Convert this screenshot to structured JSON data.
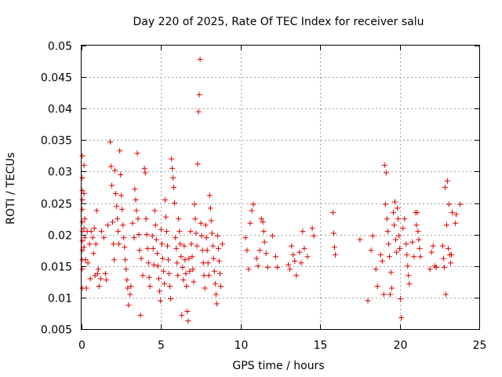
{
  "chart_data": {
    "type": "scatter",
    "title": "Day 220 of 2025, Rate Of TEC Index for receiver salu",
    "xlabel": "GPS time / hours",
    "ylabel": "ROTI / TECUs",
    "xlim": [
      0,
      25
    ],
    "ylim": [
      0.005,
      0.05
    ],
    "x_ticks": [
      0,
      5,
      10,
      15,
      20,
      25
    ],
    "y_ticks": [
      0.005,
      0.01,
      0.015,
      0.02,
      0.025,
      0.03,
      0.035,
      0.04,
      0.045,
      0.05
    ],
    "x_tick_labels": [
      "0",
      "5",
      "10",
      "15",
      "20",
      "25"
    ],
    "y_tick_labels": [
      "0.005",
      "0.01",
      "0.015",
      "0.02",
      "0.025",
      "0.03",
      "0.035",
      "0.04",
      "0.045",
      "0.05"
    ],
    "grid": true,
    "marker": "+",
    "marker_color": "#e00000",
    "series": [
      {
        "points": [
          [
            0.05,
            0.0325
          ],
          [
            0.05,
            0.029
          ],
          [
            0.05,
            0.027
          ],
          [
            0.05,
            0.0255
          ],
          [
            0.05,
            0.024
          ],
          [
            0.05,
            0.022
          ],
          [
            0.05,
            0.0205
          ],
          [
            0.05,
            0.019
          ],
          [
            0.05,
            0.0175
          ],
          [
            0.05,
            0.016
          ],
          [
            0.05,
            0.0145
          ],
          [
            0.05,
            0.0115
          ],
          [
            0.15,
            0.031
          ],
          [
            0.15,
            0.0265
          ],
          [
            0.15,
            0.021
          ],
          [
            0.15,
            0.018
          ],
          [
            0.2,
            0.0225
          ],
          [
            0.2,
            0.0195
          ],
          [
            0.25,
            0.016
          ],
          [
            0.3,
            0.0115
          ],
          [
            0.35,
            0.0205
          ],
          [
            0.4,
            0.0155
          ],
          [
            0.5,
            0.0185
          ],
          [
            0.55,
            0.013
          ],
          [
            0.6,
            0.0205
          ],
          [
            0.7,
            0.0195
          ],
          [
            0.75,
            0.017
          ],
          [
            0.8,
            0.021
          ],
          [
            0.85,
            0.0135
          ],
          [
            0.9,
            0.0185
          ],
          [
            0.95,
            0.0238
          ],
          [
            1.0,
            0.0138
          ],
          [
            1.05,
            0.0145
          ],
          [
            1.1,
            0.0118
          ],
          [
            1.2,
            0.013
          ],
          [
            1.25,
            0.0205
          ],
          [
            1.4,
            0.0195
          ],
          [
            1.5,
            0.0138
          ],
          [
            1.55,
            0.0128
          ],
          [
            1.65,
            0.0215
          ],
          [
            1.8,
            0.0347
          ],
          [
            1.85,
            0.0308
          ],
          [
            1.9,
            0.0278
          ],
          [
            1.95,
            0.022
          ],
          [
            2.0,
            0.0185
          ],
          [
            2.05,
            0.016
          ],
          [
            2.1,
            0.0302
          ],
          [
            2.15,
            0.0265
          ],
          [
            2.2,
            0.0245
          ],
          [
            2.25,
            0.0225
          ],
          [
            2.3,
            0.0205
          ],
          [
            2.35,
            0.0185
          ],
          [
            2.4,
            0.0333
          ],
          [
            2.45,
            0.0295
          ],
          [
            2.5,
            0.0262
          ],
          [
            2.55,
            0.024
          ],
          [
            2.6,
            0.0215
          ],
          [
            2.65,
            0.0195
          ],
          [
            2.7,
            0.018
          ],
          [
            2.75,
            0.016
          ],
          [
            2.8,
            0.0145
          ],
          [
            2.85,
            0.0128
          ],
          [
            2.9,
            0.0115
          ],
          [
            2.95,
            0.0088
          ],
          [
            3.05,
            0.0105
          ],
          [
            3.1,
            0.0118
          ],
          [
            3.2,
            0.0218
          ],
          [
            3.3,
            0.0195
          ],
          [
            3.35,
            0.0272
          ],
          [
            3.4,
            0.0255
          ],
          [
            3.45,
            0.0238
          ],
          [
            3.5,
            0.0329
          ],
          [
            3.55,
            0.0225
          ],
          [
            3.6,
            0.02
          ],
          [
            3.65,
            0.0175
          ],
          [
            3.7,
            0.0072
          ],
          [
            3.75,
            0.0162
          ],
          [
            3.85,
            0.0135
          ],
          [
            3.95,
            0.0305
          ],
          [
            4.0,
            0.0298
          ],
          [
            4.05,
            0.0225
          ],
          [
            4.1,
            0.02
          ],
          [
            4.15,
            0.0178
          ],
          [
            4.2,
            0.0155
          ],
          [
            4.25,
            0.0132
          ],
          [
            4.3,
            0.0118
          ],
          [
            4.45,
            0.0198
          ],
          [
            4.5,
            0.0178
          ],
          [
            4.55,
            0.0152
          ],
          [
            4.6,
            0.0238
          ],
          [
            4.65,
            0.0215
          ],
          [
            4.7,
            0.0192
          ],
          [
            4.75,
            0.017
          ],
          [
            4.8,
            0.015
          ],
          [
            4.85,
            0.013
          ],
          [
            4.9,
            0.011
          ],
          [
            4.95,
            0.0095
          ],
          [
            5.0,
            0.0208
          ],
          [
            5.05,
            0.0185
          ],
          [
            5.1,
            0.0162
          ],
          [
            5.15,
            0.0142
          ],
          [
            5.2,
            0.0122
          ],
          [
            5.25,
            0.0255
          ],
          [
            5.3,
            0.0228
          ],
          [
            5.35,
            0.0205
          ],
          [
            5.4,
            0.0182
          ],
          [
            5.45,
            0.016
          ],
          [
            5.5,
            0.0138
          ],
          [
            5.55,
            0.0118
          ],
          [
            5.6,
            0.0098
          ],
          [
            5.65,
            0.032
          ],
          [
            5.7,
            0.0305
          ],
          [
            5.75,
            0.029
          ],
          [
            5.8,
            0.0275
          ],
          [
            5.85,
            0.025
          ],
          [
            5.9,
            0.0195
          ],
          [
            5.95,
            0.0178
          ],
          [
            6.0,
            0.0155
          ],
          [
            6.05,
            0.0135
          ],
          [
            6.1,
            0.0225
          ],
          [
            6.15,
            0.0205
          ],
          [
            6.2,
            0.0185
          ],
          [
            6.25,
            0.0165
          ],
          [
            6.3,
            0.0072
          ],
          [
            6.35,
            0.0148
          ],
          [
            6.4,
            0.0128
          ],
          [
            6.45,
            0.0182
          ],
          [
            6.5,
            0.016
          ],
          [
            6.55,
            0.0138
          ],
          [
            6.6,
            0.0118
          ],
          [
            6.65,
            0.0078
          ],
          [
            6.7,
            0.0063
          ],
          [
            6.75,
            0.0162
          ],
          [
            6.8,
            0.0142
          ],
          [
            6.85,
            0.0205
          ],
          [
            6.9,
            0.0185
          ],
          [
            6.95,
            0.0165
          ],
          [
            7.0,
            0.0145
          ],
          [
            7.05,
            0.0125
          ],
          [
            7.1,
            0.0248
          ],
          [
            7.15,
            0.0225
          ],
          [
            7.2,
            0.0202
          ],
          [
            7.25,
            0.0182
          ],
          [
            7.3,
            0.0312
          ],
          [
            7.35,
            0.0395
          ],
          [
            7.4,
            0.0422
          ],
          [
            7.45,
            0.0478
          ],
          [
            7.5,
            0.0218
          ],
          [
            7.55,
            0.0198
          ],
          [
            7.6,
            0.0175
          ],
          [
            7.65,
            0.0155
          ],
          [
            7.7,
            0.0135
          ],
          [
            7.75,
            0.0115
          ],
          [
            7.8,
            0.0215
          ],
          [
            7.85,
            0.0195
          ],
          [
            7.9,
            0.0175
          ],
          [
            7.95,
            0.0155
          ],
          [
            8.0,
            0.0135
          ],
          [
            8.05,
            0.0262
          ],
          [
            8.1,
            0.0242
          ],
          [
            8.15,
            0.0222
          ],
          [
            8.2,
            0.0202
          ],
          [
            8.25,
            0.0182
          ],
          [
            8.3,
            0.0162
          ],
          [
            8.35,
            0.0142
          ],
          [
            8.4,
            0.0122
          ],
          [
            8.45,
            0.0105
          ],
          [
            8.5,
            0.009
          ],
          [
            8.55,
            0.0198
          ],
          [
            8.6,
            0.0178
          ],
          [
            8.65,
            0.0158
          ],
          [
            8.7,
            0.0138
          ],
          [
            8.75,
            0.0118
          ],
          [
            8.85,
            0.0185
          ],
          [
            10.3,
            0.0195
          ],
          [
            10.4,
            0.0175
          ],
          [
            10.5,
            0.0145
          ],
          [
            10.6,
            0.0218
          ],
          [
            10.7,
            0.0238
          ],
          [
            10.8,
            0.0248
          ],
          [
            11.0,
            0.0162
          ],
          [
            11.1,
            0.015
          ],
          [
            11.2,
            0.0175
          ],
          [
            11.3,
            0.0225
          ],
          [
            11.4,
            0.022
          ],
          [
            11.45,
            0.0205
          ],
          [
            11.5,
            0.0188
          ],
          [
            11.6,
            0.017
          ],
          [
            11.7,
            0.0148
          ],
          [
            12.0,
            0.0198
          ],
          [
            12.2,
            0.0165
          ],
          [
            12.3,
            0.0148
          ],
          [
            13.0,
            0.0152
          ],
          [
            13.1,
            0.0145
          ],
          [
            13.2,
            0.0182
          ],
          [
            13.3,
            0.0168
          ],
          [
            13.4,
            0.0158
          ],
          [
            13.5,
            0.0135
          ],
          [
            13.7,
            0.0172
          ],
          [
            13.8,
            0.0155
          ],
          [
            13.9,
            0.0205
          ],
          [
            14.0,
            0.0178
          ],
          [
            14.2,
            0.0165
          ],
          [
            14.5,
            0.021
          ],
          [
            14.6,
            0.0198
          ],
          [
            15.8,
            0.0235
          ],
          [
            15.85,
            0.0202
          ],
          [
            15.9,
            0.018
          ],
          [
            15.95,
            0.0168
          ],
          [
            17.5,
            0.0192
          ],
          [
            18.0,
            0.0095
          ],
          [
            18.2,
            0.0175
          ],
          [
            18.3,
            0.0198
          ],
          [
            18.5,
            0.0145
          ],
          [
            18.6,
            0.0118
          ],
          [
            18.8,
            0.0168
          ],
          [
            18.9,
            0.0158
          ],
          [
            19.0,
            0.0105
          ],
          [
            19.05,
            0.031
          ],
          [
            19.1,
            0.0248
          ],
          [
            19.15,
            0.0298
          ],
          [
            19.2,
            0.0225
          ],
          [
            19.25,
            0.0205
          ],
          [
            19.3,
            0.0185
          ],
          [
            19.35,
            0.0165
          ],
          [
            19.4,
            0.0105
          ],
          [
            19.45,
            0.014
          ],
          [
            19.5,
            0.0115
          ],
          [
            19.6,
            0.0235
          ],
          [
            19.65,
            0.0215
          ],
          [
            19.7,
            0.0252
          ],
          [
            19.75,
            0.0192
          ],
          [
            19.8,
            0.0172
          ],
          [
            19.85,
            0.0242
          ],
          [
            19.9,
            0.0225
          ],
          [
            19.95,
            0.0198
          ],
          [
            20.0,
            0.0178
          ],
          [
            20.05,
            0.0098
          ],
          [
            20.1,
            0.0068
          ],
          [
            20.2,
            0.021
          ],
          [
            20.3,
            0.0225
          ],
          [
            20.4,
            0.0185
          ],
          [
            20.45,
            0.0168
          ],
          [
            20.5,
            0.015
          ],
          [
            20.55,
            0.0135
          ],
          [
            20.6,
            0.0122
          ],
          [
            20.8,
            0.0188
          ],
          [
            20.9,
            0.0165
          ],
          [
            21.0,
            0.0235
          ],
          [
            21.05,
            0.0215
          ],
          [
            21.1,
            0.0235
          ],
          [
            21.15,
            0.0205
          ],
          [
            21.2,
            0.0192
          ],
          [
            21.25,
            0.0178
          ],
          [
            21.3,
            0.0165
          ],
          [
            21.9,
            0.0145
          ],
          [
            22.0,
            0.0172
          ],
          [
            22.1,
            0.0182
          ],
          [
            22.2,
            0.015
          ],
          [
            22.3,
            0.0148
          ],
          [
            22.7,
            0.0182
          ],
          [
            22.75,
            0.0162
          ],
          [
            22.8,
            0.0148
          ],
          [
            22.85,
            0.0275
          ],
          [
            22.9,
            0.0105
          ],
          [
            22.95,
            0.0215
          ],
          [
            23.0,
            0.0285
          ],
          [
            23.05,
            0.0178
          ],
          [
            23.1,
            0.0248
          ],
          [
            23.15,
            0.0168
          ],
          [
            23.2,
            0.0155
          ],
          [
            23.25,
            0.0168
          ],
          [
            23.3,
            0.0235
          ],
          [
            23.5,
            0.0218
          ],
          [
            23.55,
            0.0232
          ],
          [
            23.8,
            0.0248
          ]
        ]
      }
    ]
  }
}
